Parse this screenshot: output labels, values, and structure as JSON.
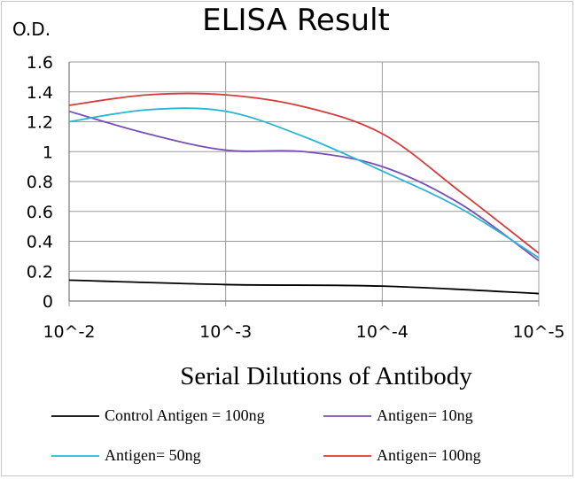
{
  "chart_data": {
    "type": "line",
    "title": "ELISA Result",
    "ylabel": "O.D.",
    "xlabel": "Serial Dilutions  of Antibody",
    "x_tick_labels": [
      "10^-2",
      "10^-3",
      "10^-4",
      "10^-5"
    ],
    "x": [
      0,
      1,
      2,
      3
    ],
    "y_tick_labels": [
      "0",
      "0.2",
      "0.4",
      "0.6",
      "0.8",
      "1",
      "1.2",
      "1.4",
      "1.6"
    ],
    "ylim": [
      0,
      1.6
    ],
    "grid": true,
    "legend_position": "bottom",
    "series": [
      {
        "name": "Control Antigen = 100ng",
        "color": "#000000",
        "points": [
          [
            0,
            0.14
          ],
          [
            1,
            0.11
          ],
          [
            2,
            0.1
          ],
          [
            3,
            0.05
          ]
        ]
      },
      {
        "name": "Antigen= 10ng",
        "color": "#7a4fb5",
        "points": [
          [
            0,
            1.27
          ],
          [
            0.5,
            1.12
          ],
          [
            1,
            1.01
          ],
          [
            1.5,
            1.0
          ],
          [
            2,
            0.9
          ],
          [
            2.5,
            0.65
          ],
          [
            3,
            0.27
          ]
        ]
      },
      {
        "name": "Antigen= 50ng",
        "color": "#2ab5d8",
        "points": [
          [
            0,
            1.2
          ],
          [
            0.5,
            1.28
          ],
          [
            1,
            1.27
          ],
          [
            1.5,
            1.1
          ],
          [
            2,
            0.87
          ],
          [
            2.5,
            0.62
          ],
          [
            3,
            0.29
          ]
        ]
      },
      {
        "name": "Antigen= 100ng",
        "color": "#d83a3a",
        "points": [
          [
            0,
            1.31
          ],
          [
            0.5,
            1.38
          ],
          [
            1,
            1.38
          ],
          [
            1.5,
            1.3
          ],
          [
            2,
            1.12
          ],
          [
            2.5,
            0.73
          ],
          [
            3,
            0.32
          ]
        ]
      }
    ]
  }
}
